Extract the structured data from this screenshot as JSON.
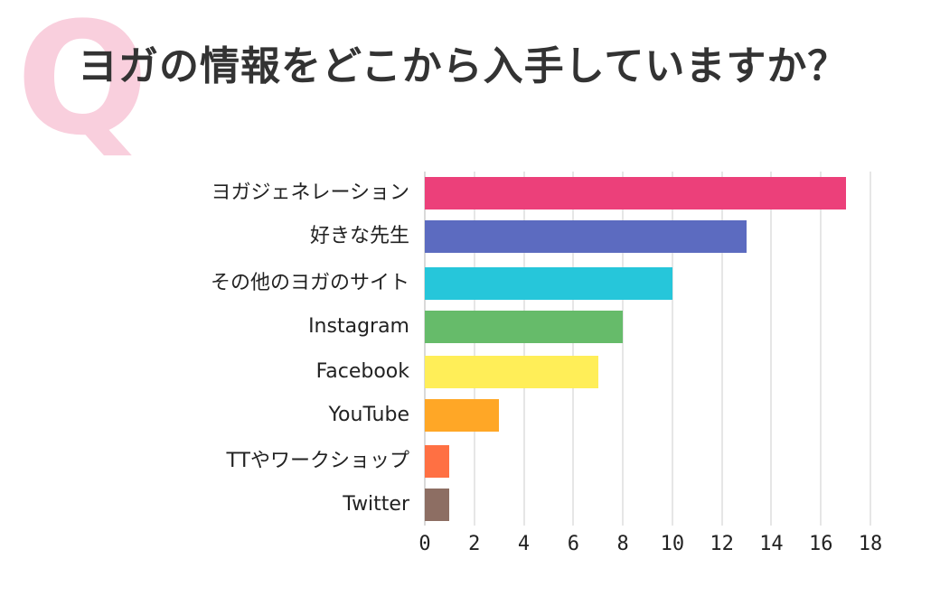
{
  "header": {
    "q_mark": "Q",
    "title": "ヨガの情報をどこから入手していますか？"
  },
  "chart_data": {
    "type": "bar",
    "orientation": "horizontal",
    "title": "ヨガの情報をどこから入手していますか？",
    "xlabel": "",
    "ylabel": "",
    "categories": [
      "ヨガジェネレーション",
      "好きな先生",
      "その他のヨガのサイト",
      "Instagram",
      "Facebook",
      "YouTube",
      "TTやワークショップ",
      "Twitter"
    ],
    "values": [
      17,
      13,
      10,
      8,
      7,
      3,
      1,
      1
    ],
    "colors": [
      "#ec407a",
      "#5c6bc0",
      "#26c6da",
      "#66bb6a",
      "#ffee58",
      "#ffa726",
      "#ff7043",
      "#8d6e63"
    ],
    "xlim": [
      0,
      18
    ],
    "xticks": [
      "0",
      "2",
      "4",
      "6",
      "8",
      "10",
      "12",
      "14",
      "16",
      "18"
    ],
    "grid": true,
    "legend": "none"
  }
}
